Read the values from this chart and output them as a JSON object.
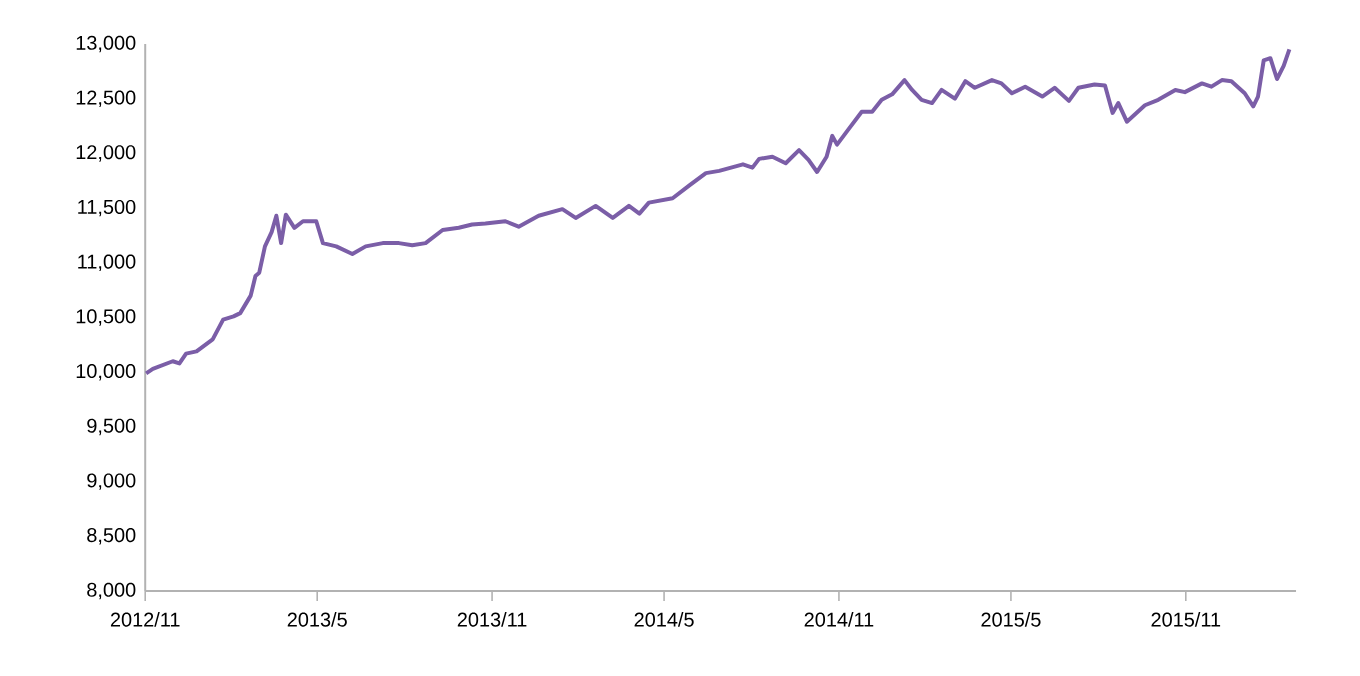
{
  "chart_data": {
    "type": "line",
    "color": "#7b5ea7",
    "line_style": "solid",
    "grid": false,
    "xlim": [
      "2012-11-01",
      "2016-02-25"
    ],
    "xticks": [
      {
        "value": "2012-11",
        "label": "2012/11"
      },
      {
        "value": "2013-05",
        "label": "2013/5"
      },
      {
        "value": "2013-11",
        "label": "2013/11"
      },
      {
        "value": "2014-05",
        "label": "2014/5"
      },
      {
        "value": "2014-11",
        "label": "2014/11"
      },
      {
        "value": "2015-05",
        "label": "2015/5"
      },
      {
        "value": "2015-11",
        "label": "2015/11"
      }
    ],
    "ylim": [
      8000,
      13000
    ],
    "yticks": [
      {
        "value": 8000,
        "label": "8,000"
      },
      {
        "value": 8500,
        "label": "8,500"
      },
      {
        "value": 9000,
        "label": "9,000"
      },
      {
        "value": 9500,
        "label": "9,500"
      },
      {
        "value": 10000,
        "label": "10,000"
      },
      {
        "value": 10500,
        "label": "10,500"
      },
      {
        "value": 11000,
        "label": "11,000"
      },
      {
        "value": 11500,
        "label": "11,500"
      },
      {
        "value": 12000,
        "label": "12,000"
      },
      {
        "value": 12500,
        "label": "12,500"
      },
      {
        "value": 13000,
        "label": "13,000"
      }
    ],
    "x": [
      "2012-11-02",
      "2012-11-09",
      "2012-11-30",
      "2012-12-07",
      "2012-12-14",
      "2012-12-25",
      "2013-01-11",
      "2013-01-22",
      "2013-02-02",
      "2013-02-09",
      "2013-02-20",
      "2013-02-25",
      "2013-03-01",
      "2013-03-07",
      "2013-03-14",
      "2013-03-19",
      "2013-03-24",
      "2013-03-29",
      "2013-04-07",
      "2013-04-16",
      "2013-04-30",
      "2013-05-07",
      "2013-05-21",
      "2013-06-07",
      "2013-06-21",
      "2013-07-09",
      "2013-07-26",
      "2013-08-09",
      "2013-08-23",
      "2013-09-10",
      "2013-09-27",
      "2013-10-11",
      "2013-10-25",
      "2013-11-15",
      "2013-11-29",
      "2013-12-20",
      "2014-01-14",
      "2014-01-28",
      "2014-02-18",
      "2014-03-08",
      "2014-03-25",
      "2014-04-05",
      "2014-04-15",
      "2014-05-10",
      "2014-05-28",
      "2014-06-14",
      "2014-06-28",
      "2014-07-23",
      "2014-08-02",
      "2014-08-09",
      "2014-08-23",
      "2014-09-06",
      "2014-09-20",
      "2014-09-30",
      "2014-10-09",
      "2014-10-19",
      "2014-10-25",
      "2014-10-30",
      "2014-11-11",
      "2014-11-25",
      "2014-12-06",
      "2014-12-16",
      "2014-12-27",
      "2015-01-09",
      "2015-01-17",
      "2015-01-27",
      "2015-02-07",
      "2015-02-17",
      "2015-03-03",
      "2015-03-14",
      "2015-03-24",
      "2015-04-11",
      "2015-04-21",
      "2015-05-02",
      "2015-05-16",
      "2015-06-03",
      "2015-06-16",
      "2015-07-01",
      "2015-07-11",
      "2015-07-28",
      "2015-08-08",
      "2015-08-16",
      "2015-08-22",
      "2015-08-31",
      "2015-09-19",
      "2015-10-03",
      "2015-10-21",
      "2015-10-31",
      "2015-11-18",
      "2015-11-28",
      "2015-12-09",
      "2015-12-19",
      "2016-01-02",
      "2016-01-11",
      "2016-01-16",
      "2016-01-22",
      "2016-01-29",
      "2016-02-05",
      "2016-02-12",
      "2016-02-18"
    ],
    "values": [
      9990,
      10030,
      10100,
      10080,
      10170,
      10190,
      10300,
      10480,
      10510,
      10540,
      10700,
      10880,
      10910,
      11150,
      11280,
      11430,
      11180,
      11440,
      11320,
      11380,
      11380,
      11180,
      11150,
      11080,
      11150,
      11180,
      11180,
      11160,
      11180,
      11300,
      11320,
      11350,
      11360,
      11380,
      11330,
      11430,
      11490,
      11410,
      11520,
      11410,
      11520,
      11450,
      11550,
      11590,
      11710,
      11820,
      11840,
      11900,
      11870,
      11950,
      11970,
      11910,
      12030,
      11940,
      11830,
      11970,
      12160,
      12080,
      12220,
      12380,
      12380,
      12490,
      12540,
      12670,
      12580,
      12490,
      12460,
      12580,
      12500,
      12660,
      12600,
      12670,
      12640,
      12550,
      12610,
      12520,
      12600,
      12480,
      12600,
      12630,
      12620,
      12370,
      12460,
      12290,
      12440,
      12490,
      12580,
      12560,
      12640,
      12610,
      12670,
      12660,
      12550,
      12430,
      12520,
      12850,
      12870,
      12680,
      12800,
      12950
    ]
  }
}
